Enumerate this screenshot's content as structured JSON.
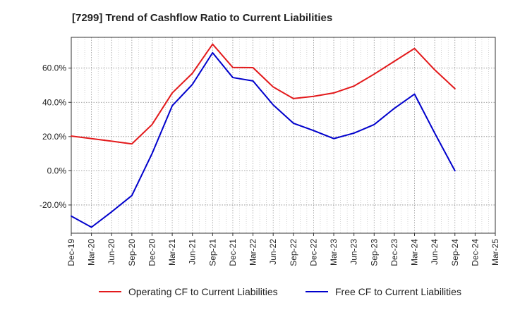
{
  "chart_data": {
    "type": "line",
    "title": "[7299]  Trend of Cashflow Ratio to Current Liabilities",
    "xlabel": "",
    "ylabel": "",
    "categories": [
      "Dec-19",
      "Mar-20",
      "Jun-20",
      "Sep-20",
      "Dec-20",
      "Mar-21",
      "Jun-21",
      "Sep-21",
      "Dec-21",
      "Mar-22",
      "Jun-22",
      "Sep-22",
      "Dec-22",
      "Mar-23",
      "Jun-23",
      "Sep-23",
      "Dec-23",
      "Mar-24",
      "Jun-24",
      "Sep-24",
      "Dec-24",
      "Mar-25"
    ],
    "yticks": [
      -20,
      0,
      20,
      40,
      60
    ],
    "ytick_labels": [
      "-20.0%",
      "0.0%",
      "20.0%",
      "40.0%",
      "60.0%"
    ],
    "ylim": [
      -36.5,
      78
    ],
    "grid": true,
    "legend_position": "bottom",
    "series": [
      {
        "name": "Operating CF to Current Liabilities",
        "color": "#e31a1c",
        "values": [
          20.3,
          18.8,
          17.3,
          15.7,
          27.0,
          45.5,
          57.0,
          74.0,
          60.4,
          60.3,
          49.0,
          42.2,
          43.5,
          45.5,
          49.5,
          56.5,
          64.0,
          71.5,
          59.0,
          48.0,
          null,
          null
        ]
      },
      {
        "name": "Free CF to Current Liabilities",
        "color": "#0000cc",
        "values": [
          -26.5,
          -33.0,
          -24.0,
          -14.5,
          10.0,
          38.0,
          50.5,
          69.0,
          54.5,
          52.5,
          38.5,
          27.8,
          23.5,
          18.8,
          22.0,
          27.0,
          36.5,
          44.8,
          22.0,
          0.0,
          null,
          null
        ]
      }
    ]
  }
}
